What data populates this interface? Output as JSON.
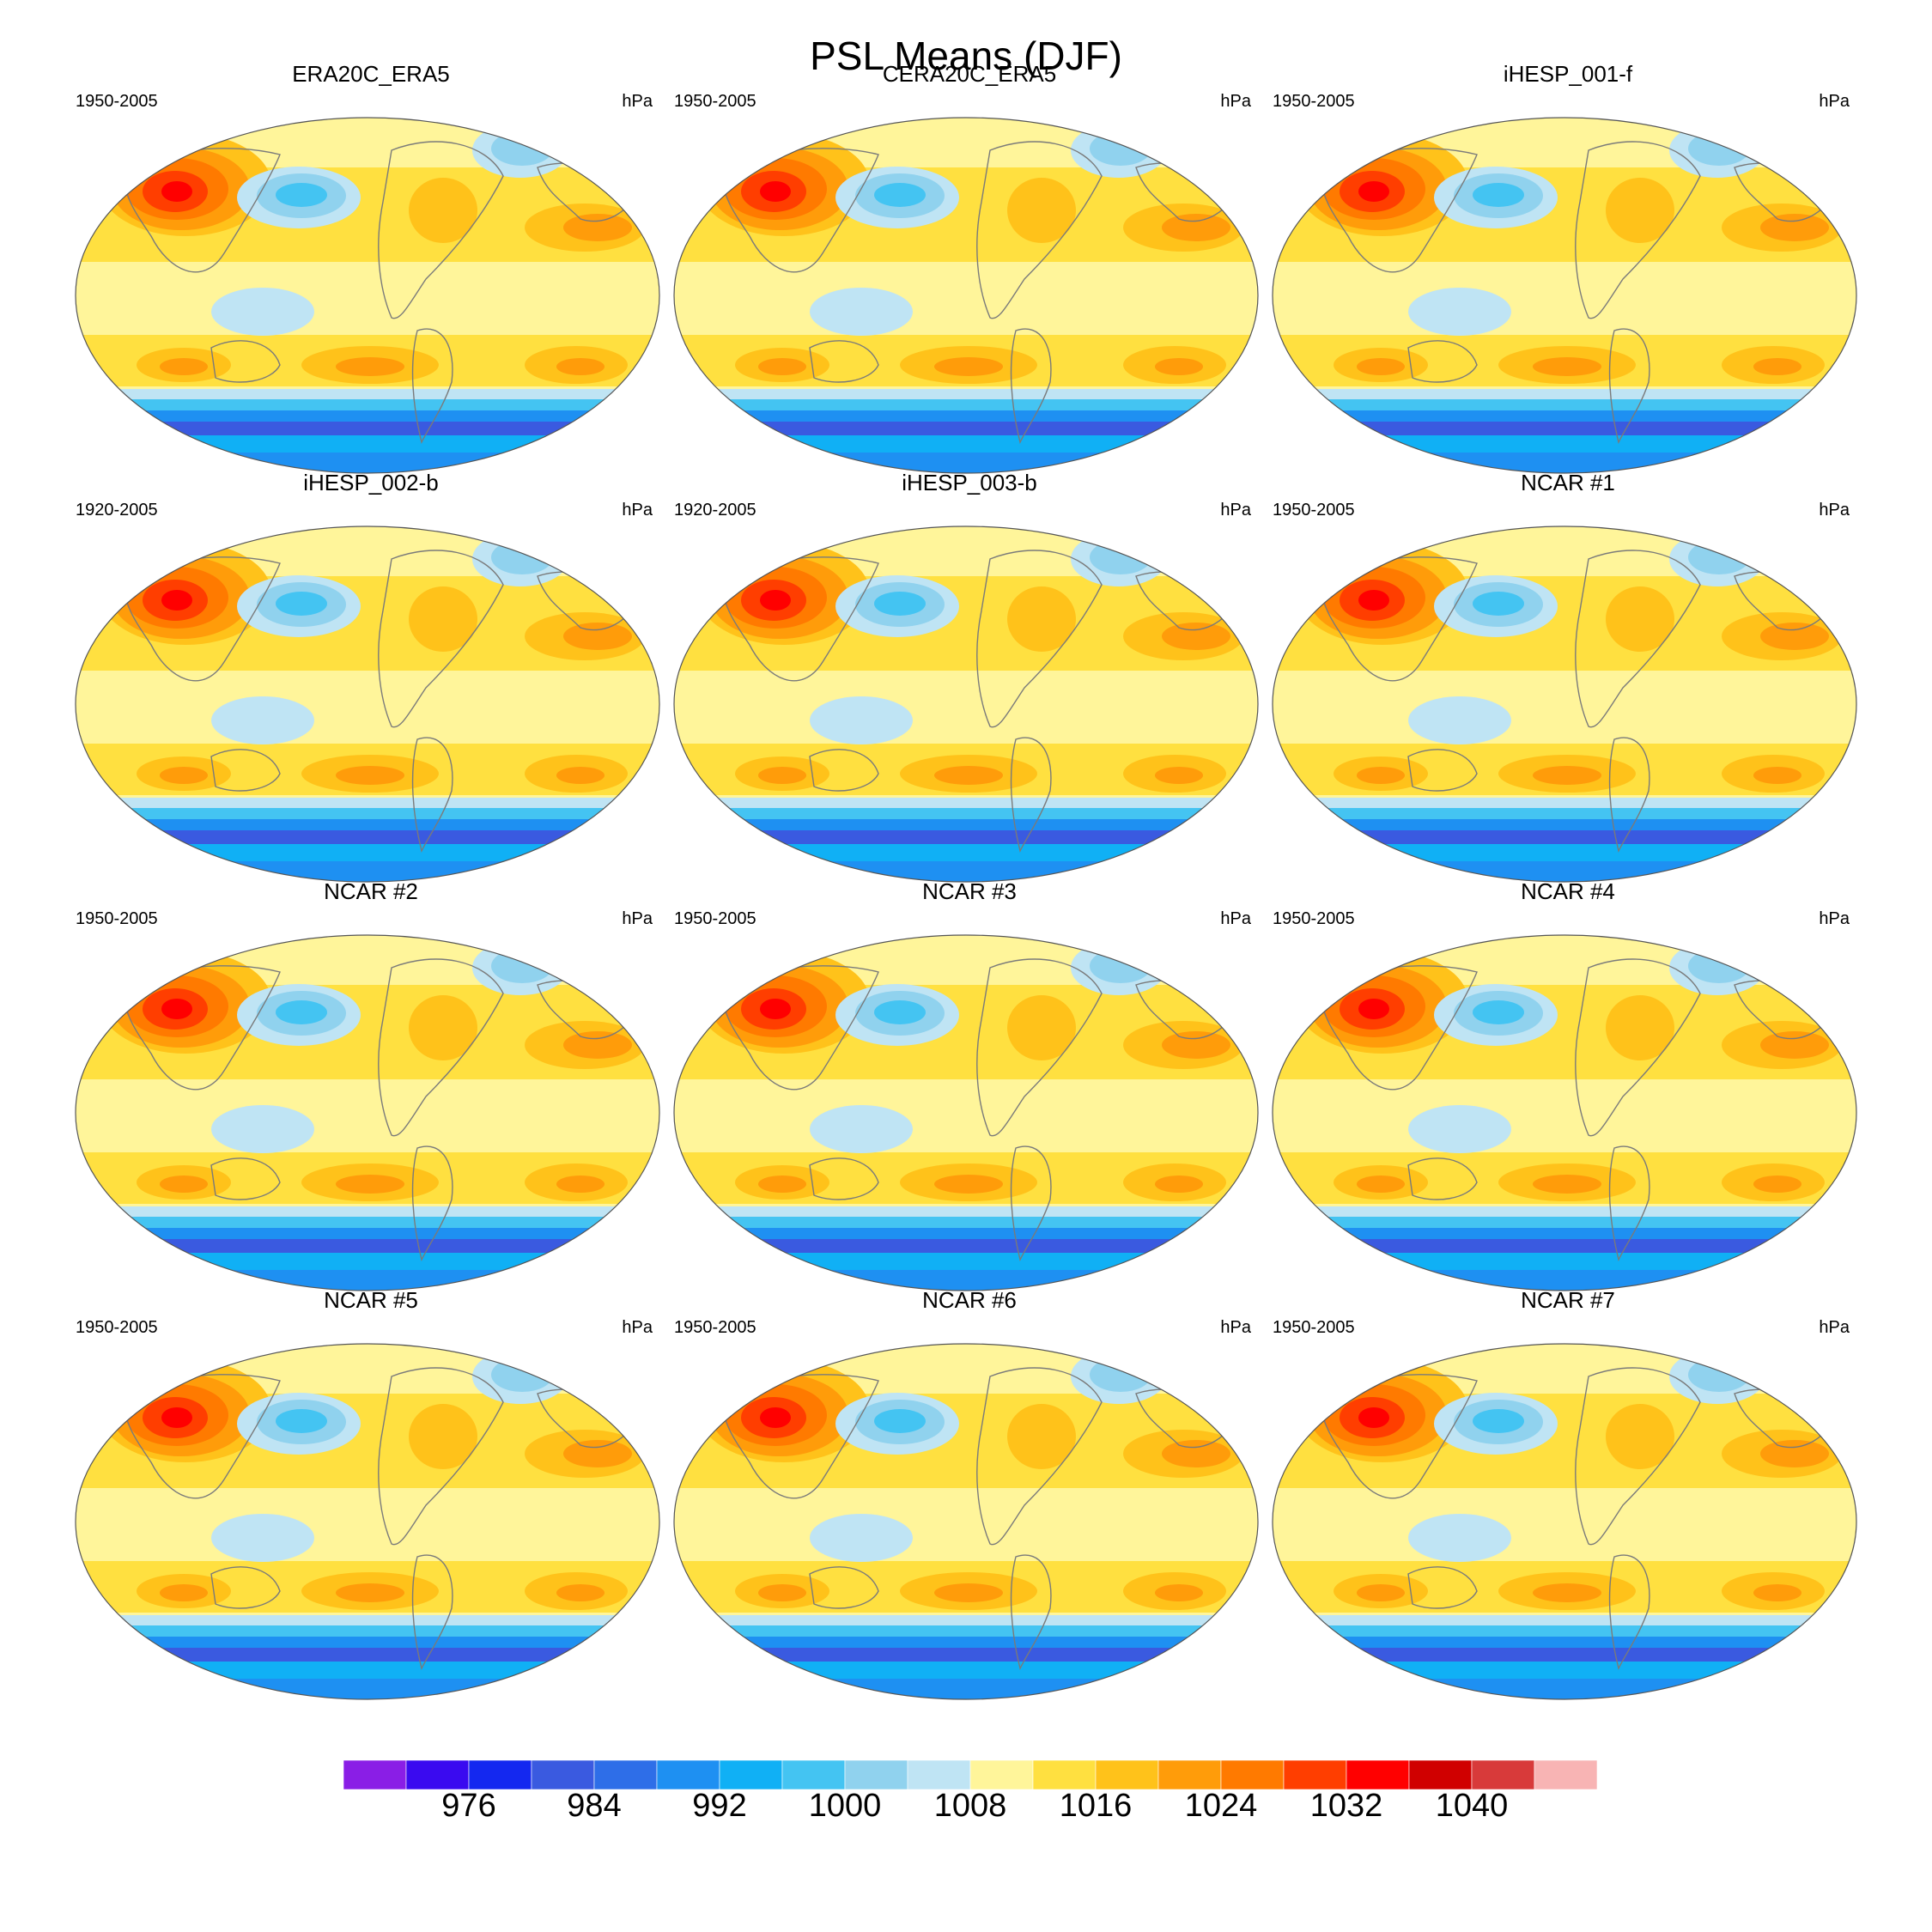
{
  "title": "PSL Means (DJF)",
  "units": "hPa",
  "panels": [
    {
      "name": "ERA20C_ERA5",
      "period": "1950-2005"
    },
    {
      "name": "CERA20C_ERA5",
      "period": "1950-2005"
    },
    {
      "name": "iHESP_001-f",
      "period": "1950-2005"
    },
    {
      "name": "iHESP_002-b",
      "period": "1920-2005"
    },
    {
      "name": "iHESP_003-b",
      "period": "1920-2005"
    },
    {
      "name": "NCAR #1",
      "period": "1950-2005"
    },
    {
      "name": "NCAR #2",
      "period": "1950-2005"
    },
    {
      "name": "NCAR #3",
      "period": "1950-2005"
    },
    {
      "name": "NCAR #4",
      "period": "1950-2005"
    },
    {
      "name": "NCAR #5",
      "period": "1950-2005"
    },
    {
      "name": "NCAR #6",
      "period": "1950-2005"
    },
    {
      "name": "NCAR #7",
      "period": "1950-2005"
    }
  ],
  "colorbar": {
    "labels": [
      "976",
      "984",
      "992",
      "1000",
      "1008",
      "1016",
      "1024",
      "1032",
      "1040"
    ],
    "colors": [
      "#8a1ee6",
      "#3a0af0",
      "#1428f0",
      "#3a5ae0",
      "#2e6ee8",
      "#1e90f2",
      "#10b0f5",
      "#44c4f2",
      "#90d2ee",
      "#bfe4f4",
      "#fff59a",
      "#ffe040",
      "#ffc21a",
      "#ff9c0a",
      "#ff7a00",
      "#ff3e00",
      "#ff0000",
      "#d00000",
      "#d83a3a",
      "#f8b4b4"
    ]
  }
}
